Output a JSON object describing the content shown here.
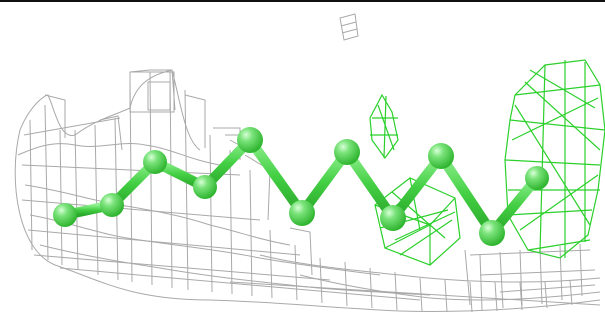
{
  "image": {
    "subject": "molecular-model-with-density-maps",
    "colors": {
      "background": "#ffffff",
      "top_rule": "#111111",
      "grey_mesh": "#a9a9a9",
      "green_mesh": "#2bd02b",
      "ligand_atom": "#48d848",
      "ligand_atom_highlight": "#b8f7b8",
      "ligand_bond": "#3ccf3c"
    },
    "icons": {
      "atom": "sphere",
      "bond": "cylinder",
      "mesh": "wireframe-grid"
    }
  }
}
